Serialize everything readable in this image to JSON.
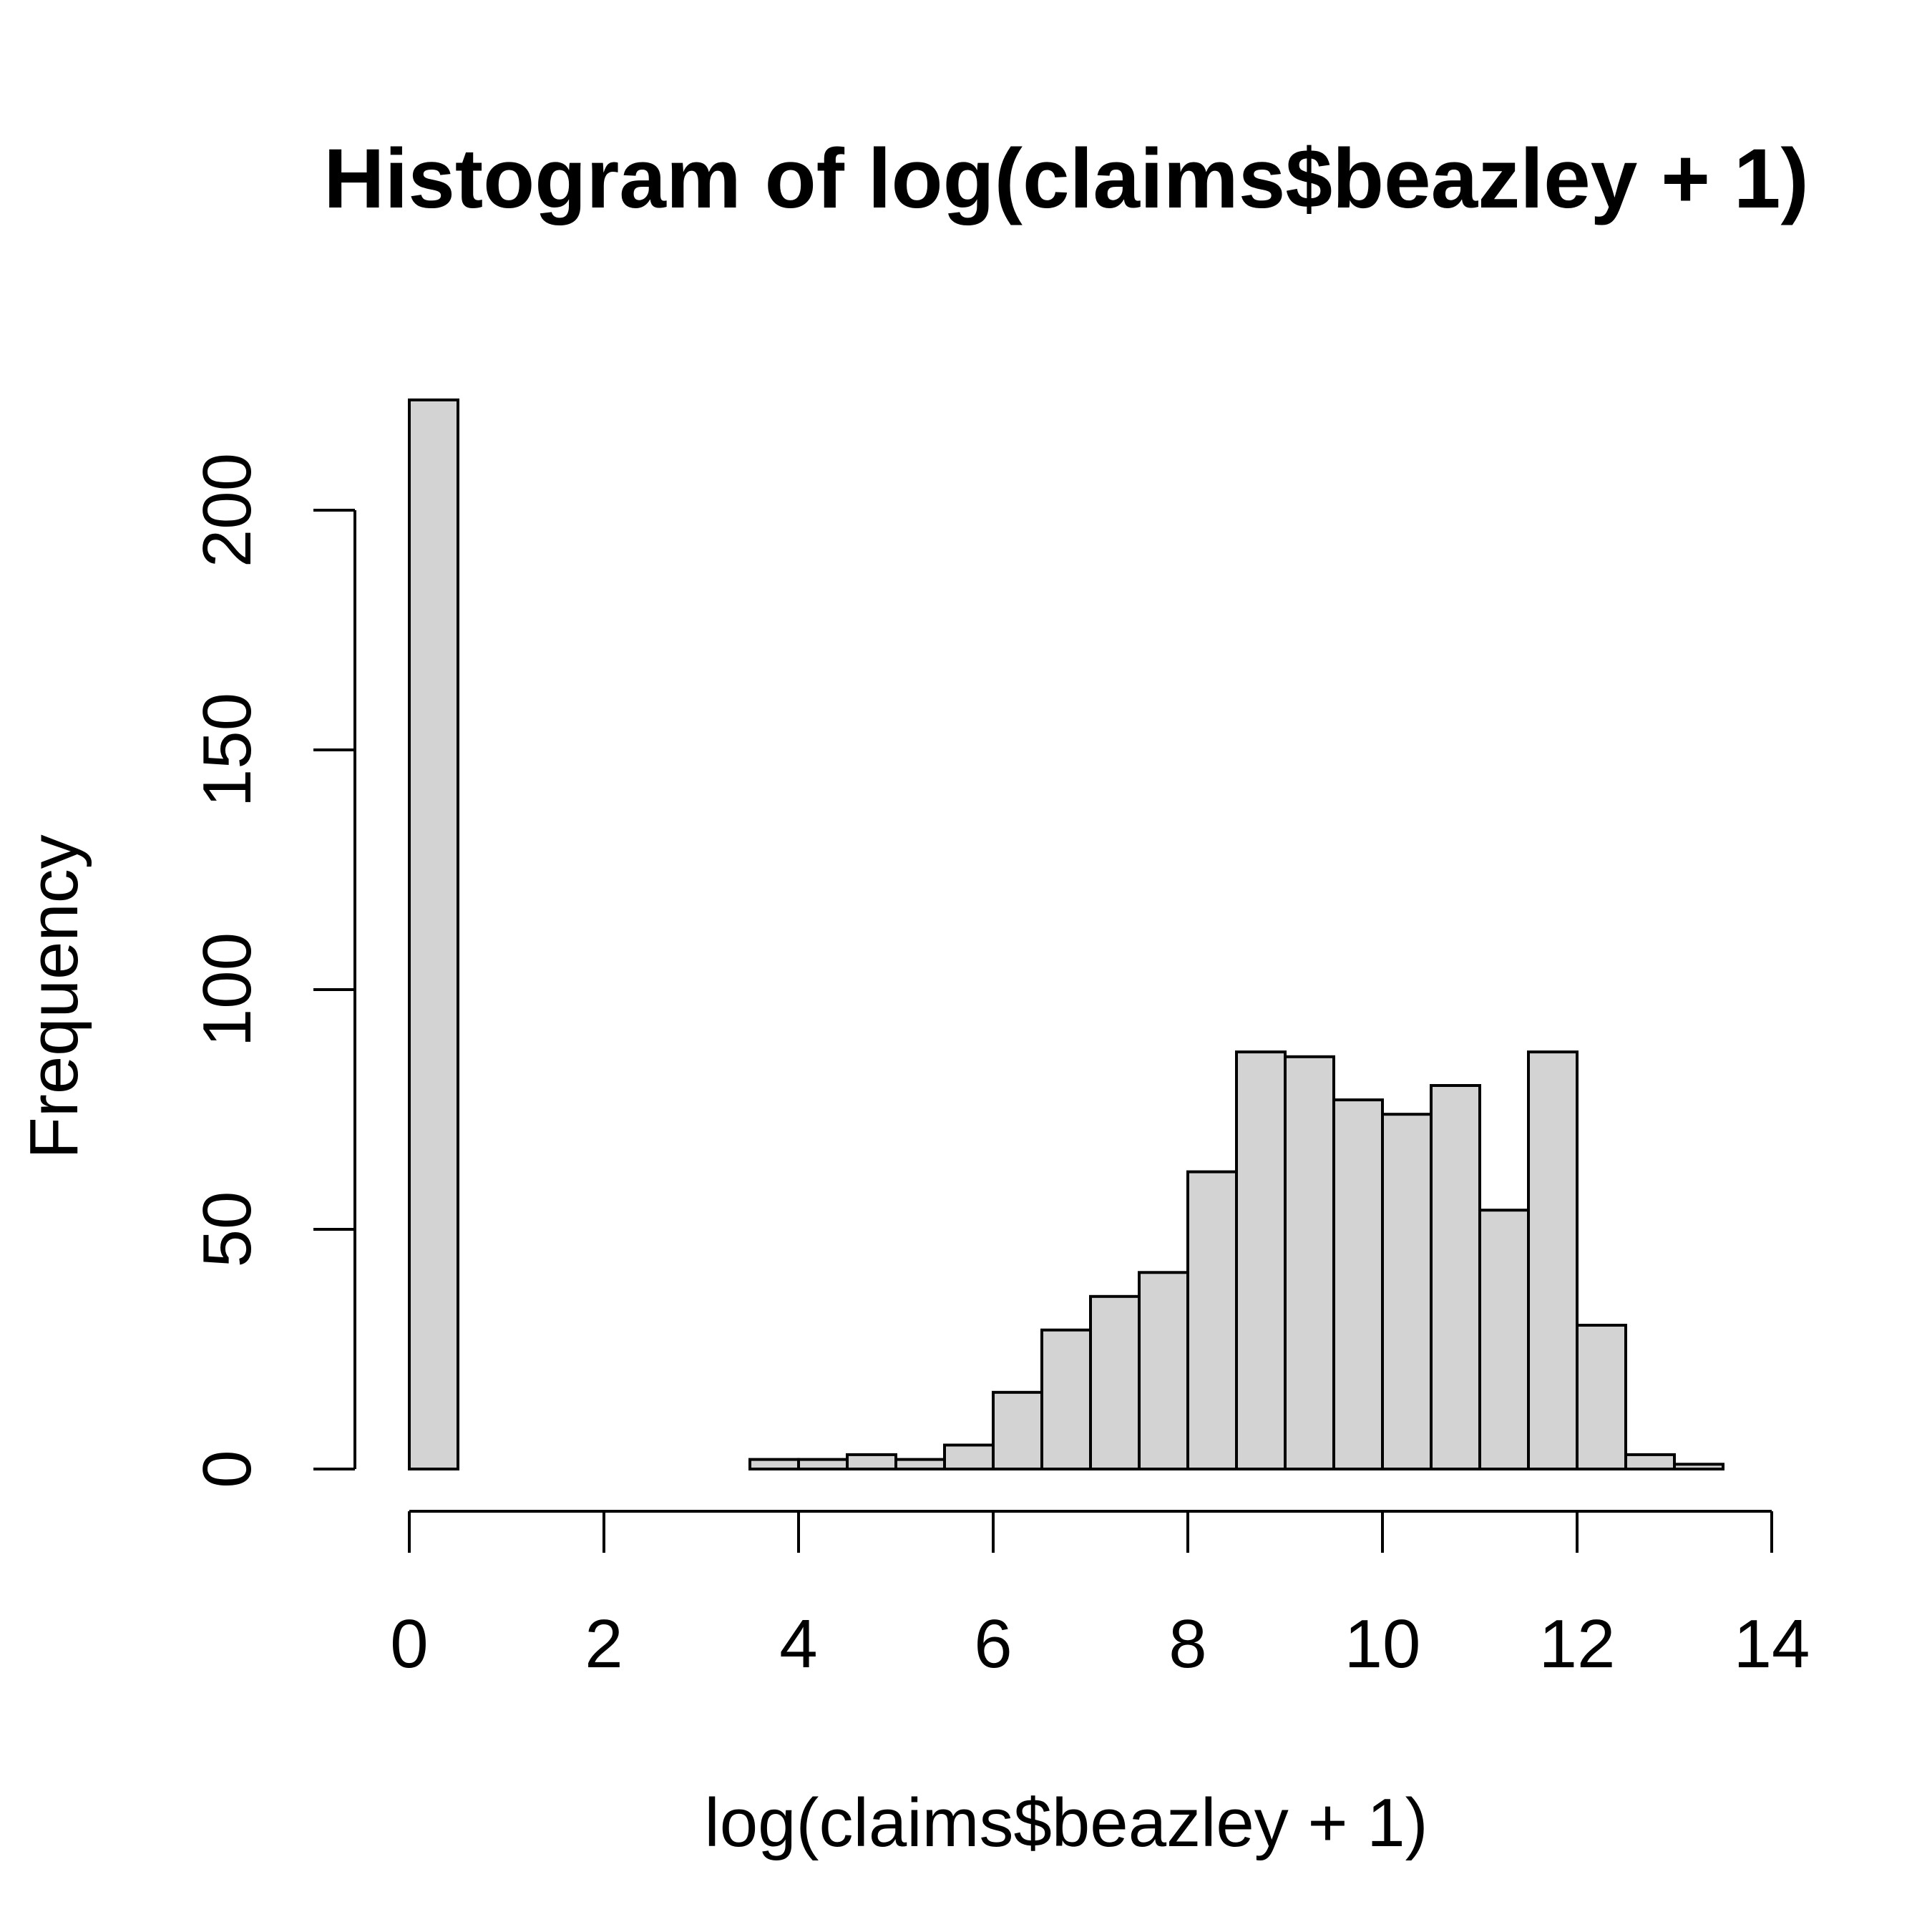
{
  "chart_data": {
    "type": "bar",
    "title": "Histogram of log(claims$beazley + 1)",
    "xlabel": "log(claims$beazley + 1)",
    "ylabel": "Frequency",
    "bin_width": 0.5,
    "bin_edges": [
      0,
      0.5,
      1,
      1.5,
      2,
      2.5,
      3,
      3.5,
      4,
      4.5,
      5,
      5.5,
      6,
      6.5,
      7,
      7.5,
      8,
      8.5,
      9,
      9.5,
      10,
      10.5,
      11,
      11.5,
      12,
      12.5,
      13,
      13.5
    ],
    "values": [
      223,
      0,
      0,
      0,
      0,
      0,
      0,
      2,
      2,
      3,
      2,
      5,
      16,
      29,
      36,
      41,
      62,
      87,
      86,
      77,
      74,
      80,
      54,
      87,
      30,
      3,
      1
    ],
    "xlim": [
      0,
      14
    ],
    "ylim": [
      0,
      223
    ],
    "x_ticks": [
      0,
      2,
      4,
      6,
      8,
      10,
      12,
      14
    ],
    "y_ticks": [
      0,
      50,
      100,
      150,
      200
    ],
    "bar_color": "#d3d3d3",
    "grid": false
  }
}
